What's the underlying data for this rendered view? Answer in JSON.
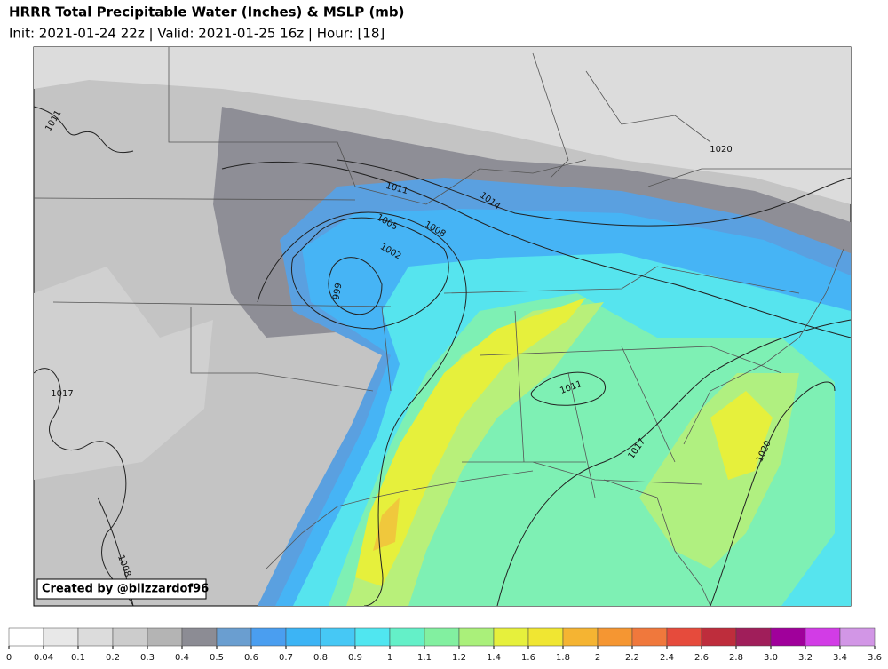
{
  "header": {
    "title": "HRRR Total Precipitable Water (Inches) & MSLP (mb)",
    "subtitle": "Init: 2021-01-24 22z | Valid: 2021-01-25 16z | Hour: [18]"
  },
  "map": {
    "credit": "Created by @blizzardof96",
    "isobar_labels": [
      1011,
      1020,
      1011,
      1014,
      1005,
      1008,
      1002,
      999,
      1017,
      1011,
      1017,
      1020,
      1008
    ]
  },
  "colorbar": {
    "ticks": [
      0,
      0.04,
      0.1,
      0.2,
      0.3,
      0.4,
      0.5,
      0.6,
      0.7,
      0.8,
      0.9,
      1,
      1.1,
      1.2,
      1.4,
      1.6,
      1.8,
      2,
      2.2,
      2.4,
      2.6,
      2.8,
      {
        "value": 3,
        "label": "3.0"
      },
      3.2,
      3.4,
      3.6
    ],
    "colors": [
      "#ffffff",
      "#e8e8e8",
      "#dcdcdc",
      "#cccccc",
      "#b4b4b4",
      "#8c8c94",
      "#6a9ed0",
      "#4a9ef0",
      "#3cb4f5",
      "#46c8f5",
      "#50e6f0",
      "#64f0c8",
      "#82f0a0",
      "#aaf07a",
      "#e6f03c",
      "#f0e632",
      "#f5b432",
      "#f59632",
      "#f0783c",
      "#e64b3c",
      "#be2d3c",
      "#a01e5a",
      "#a0009b",
      "#d23ce6",
      "#d296e6"
    ]
  }
}
